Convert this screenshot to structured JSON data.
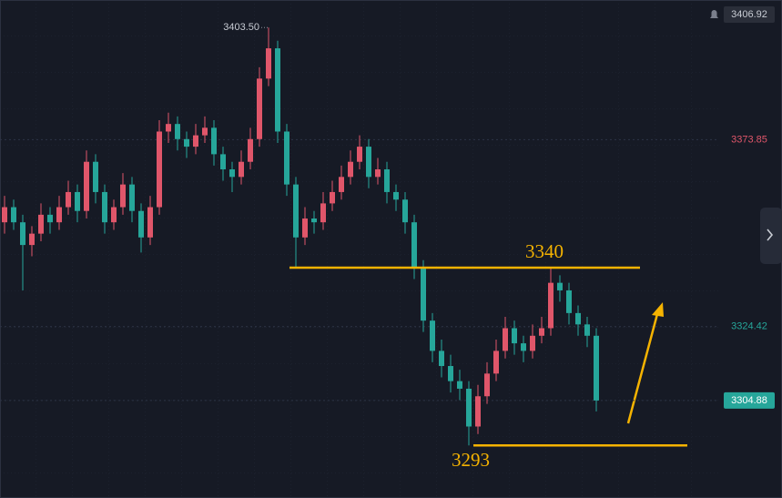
{
  "chart_data": {
    "type": "candlestick",
    "ylim": [
      3279.1,
      3410.78
    ],
    "yticks": [
      3406.92,
      3373.85,
      3324.42,
      3304.88
    ],
    "ytick_colors": [
      "#c8ccd4",
      "#e0566a",
      "#26a69a",
      "#ffffff"
    ],
    "up_color": "#e0566a",
    "down_color": "#26a69a",
    "level_color": "#f5b301",
    "levels": [
      3340,
      3293
    ],
    "high_label": {
      "value": 3403.5,
      "label": "3403.50"
    },
    "open": [
      3352,
      3356,
      3352,
      3346,
      3349,
      3354,
      3352,
      3356,
      3360,
      3355,
      3368,
      3360,
      3352,
      3356,
      3362,
      3355,
      3348,
      3356,
      3376,
      3378,
      3374,
      3372,
      3375,
      3377,
      3370,
      3366,
      3364,
      3368,
      3374,
      3390,
      3398,
      3376,
      3362,
      3348,
      3353,
      3352,
      3357,
      3360,
      3364,
      3368,
      3372,
      3364,
      3366,
      3360,
      3358,
      3352,
      3340,
      3326,
      3318,
      3314,
      3310,
      3308,
      3298,
      3306,
      3312,
      3318,
      3324,
      3320,
      3318,
      3322,
      3324,
      3336,
      3334,
      3328,
      3325,
      3322
    ],
    "high": [
      3359,
      3358,
      3354,
      3351,
      3357,
      3356,
      3359,
      3363,
      3362,
      3371,
      3370,
      3362,
      3358,
      3365,
      3364,
      3357,
      3359,
      3379,
      3381,
      3380,
      3376,
      3378,
      3380,
      3379,
      3372,
      3368,
      3371,
      3377,
      3393,
      3403.5,
      3400,
      3378,
      3364,
      3356,
      3355,
      3360,
      3363,
      3367,
      3371,
      3375,
      3374,
      3369,
      3368,
      3362,
      3360,
      3354,
      3342,
      3328,
      3321,
      3317,
      3313,
      3310,
      3309,
      3315,
      3321,
      3327,
      3326,
      3322,
      3325,
      3327,
      3340,
      3338,
      3336,
      3330,
      3327,
      3324
    ],
    "low": [
      3349,
      3350,
      3334,
      3343,
      3347,
      3349,
      3350,
      3354,
      3352,
      3353,
      3357,
      3349,
      3350,
      3354,
      3352,
      3344,
      3346,
      3354,
      3373,
      3371,
      3369,
      3370,
      3373,
      3367,
      3363,
      3360,
      3362,
      3366,
      3372,
      3388,
      3373,
      3359,
      3340.2,
      3346,
      3349,
      3350,
      3355,
      3358,
      3362,
      3366,
      3361,
      3362,
      3357,
      3355,
      3349,
      3337,
      3323,
      3315,
      3311,
      3307,
      3305,
      3293,
      3296,
      3304,
      3310,
      3316,
      3317,
      3315,
      3316,
      3320,
      3322,
      3331,
      3325,
      3322,
      3319,
      3302
    ],
    "close": [
      3356,
      3352,
      3346,
      3349,
      3354,
      3352,
      3356,
      3360,
      3355,
      3368,
      3360,
      3352,
      3356,
      3362,
      3355,
      3348,
      3356,
      3376,
      3378,
      3374,
      3372,
      3375,
      3377,
      3370,
      3366,
      3364,
      3368,
      3374,
      3390,
      3398,
      3376,
      3362,
      3348,
      3353,
      3352,
      3357,
      3360,
      3364,
      3368,
      3372,
      3364,
      3366,
      3360,
      3358,
      3352,
      3340,
      3326,
      3318,
      3314,
      3310,
      3308,
      3298,
      3306,
      3312,
      3318,
      3324,
      3320,
      3318,
      3322,
      3324,
      3336,
      3334,
      3328,
      3325,
      3322,
      3304.88
    ]
  }
}
